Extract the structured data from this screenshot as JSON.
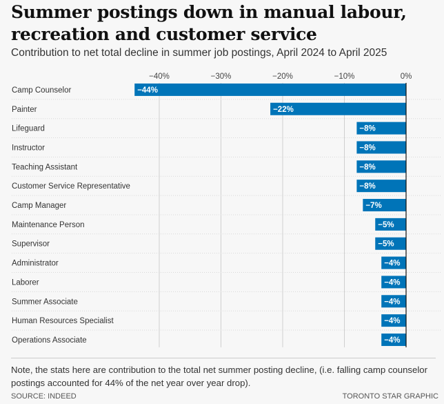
{
  "chart_data": {
    "type": "bar",
    "orientation": "horizontal",
    "title": "Summer postings down in manual labour, recreation and customer service",
    "subtitle": "Contribution to net total decline in summer job postings, April 2024 to April 2025",
    "categories": [
      "Camp Counselor",
      "Painter",
      "Lifeguard",
      "Instructor",
      "Teaching Assistant",
      "Customer Service Representative",
      "Camp Manager",
      "Maintenance Person",
      "Supervisor",
      "Administrator",
      "Laborer",
      "Summer Associate",
      "Human Resources Specialist",
      "Operations Associate"
    ],
    "values": [
      -44,
      -22,
      -8,
      -8,
      -8,
      -8,
      -7,
      -5,
      -5,
      -4,
      -4,
      -4,
      -4,
      -4
    ],
    "data_labels": [
      "−44%",
      "−22%",
      "−8%",
      "−8%",
      "−8%",
      "−8%",
      "−7%",
      "−5%",
      "−5%",
      "−4%",
      "−4%",
      "−4%",
      "−4%",
      "−4%"
    ],
    "xticks": [
      -40,
      -30,
      -20,
      -10,
      0
    ],
    "xtick_labels": [
      "−40%",
      "−30%",
      "−20%",
      "−10%",
      "0%"
    ],
    "xlim": [
      -45,
      0
    ],
    "grid": true,
    "bar_color": "#0074b8"
  },
  "note": "Note, the stats here are contribution to the total net summer posting decline, (i.e. falling camp counselor postings accounted for 44% of the net year over year drop).",
  "source": "SOURCE: INDEED",
  "credit": "TORONTO STAR GRAPHIC"
}
